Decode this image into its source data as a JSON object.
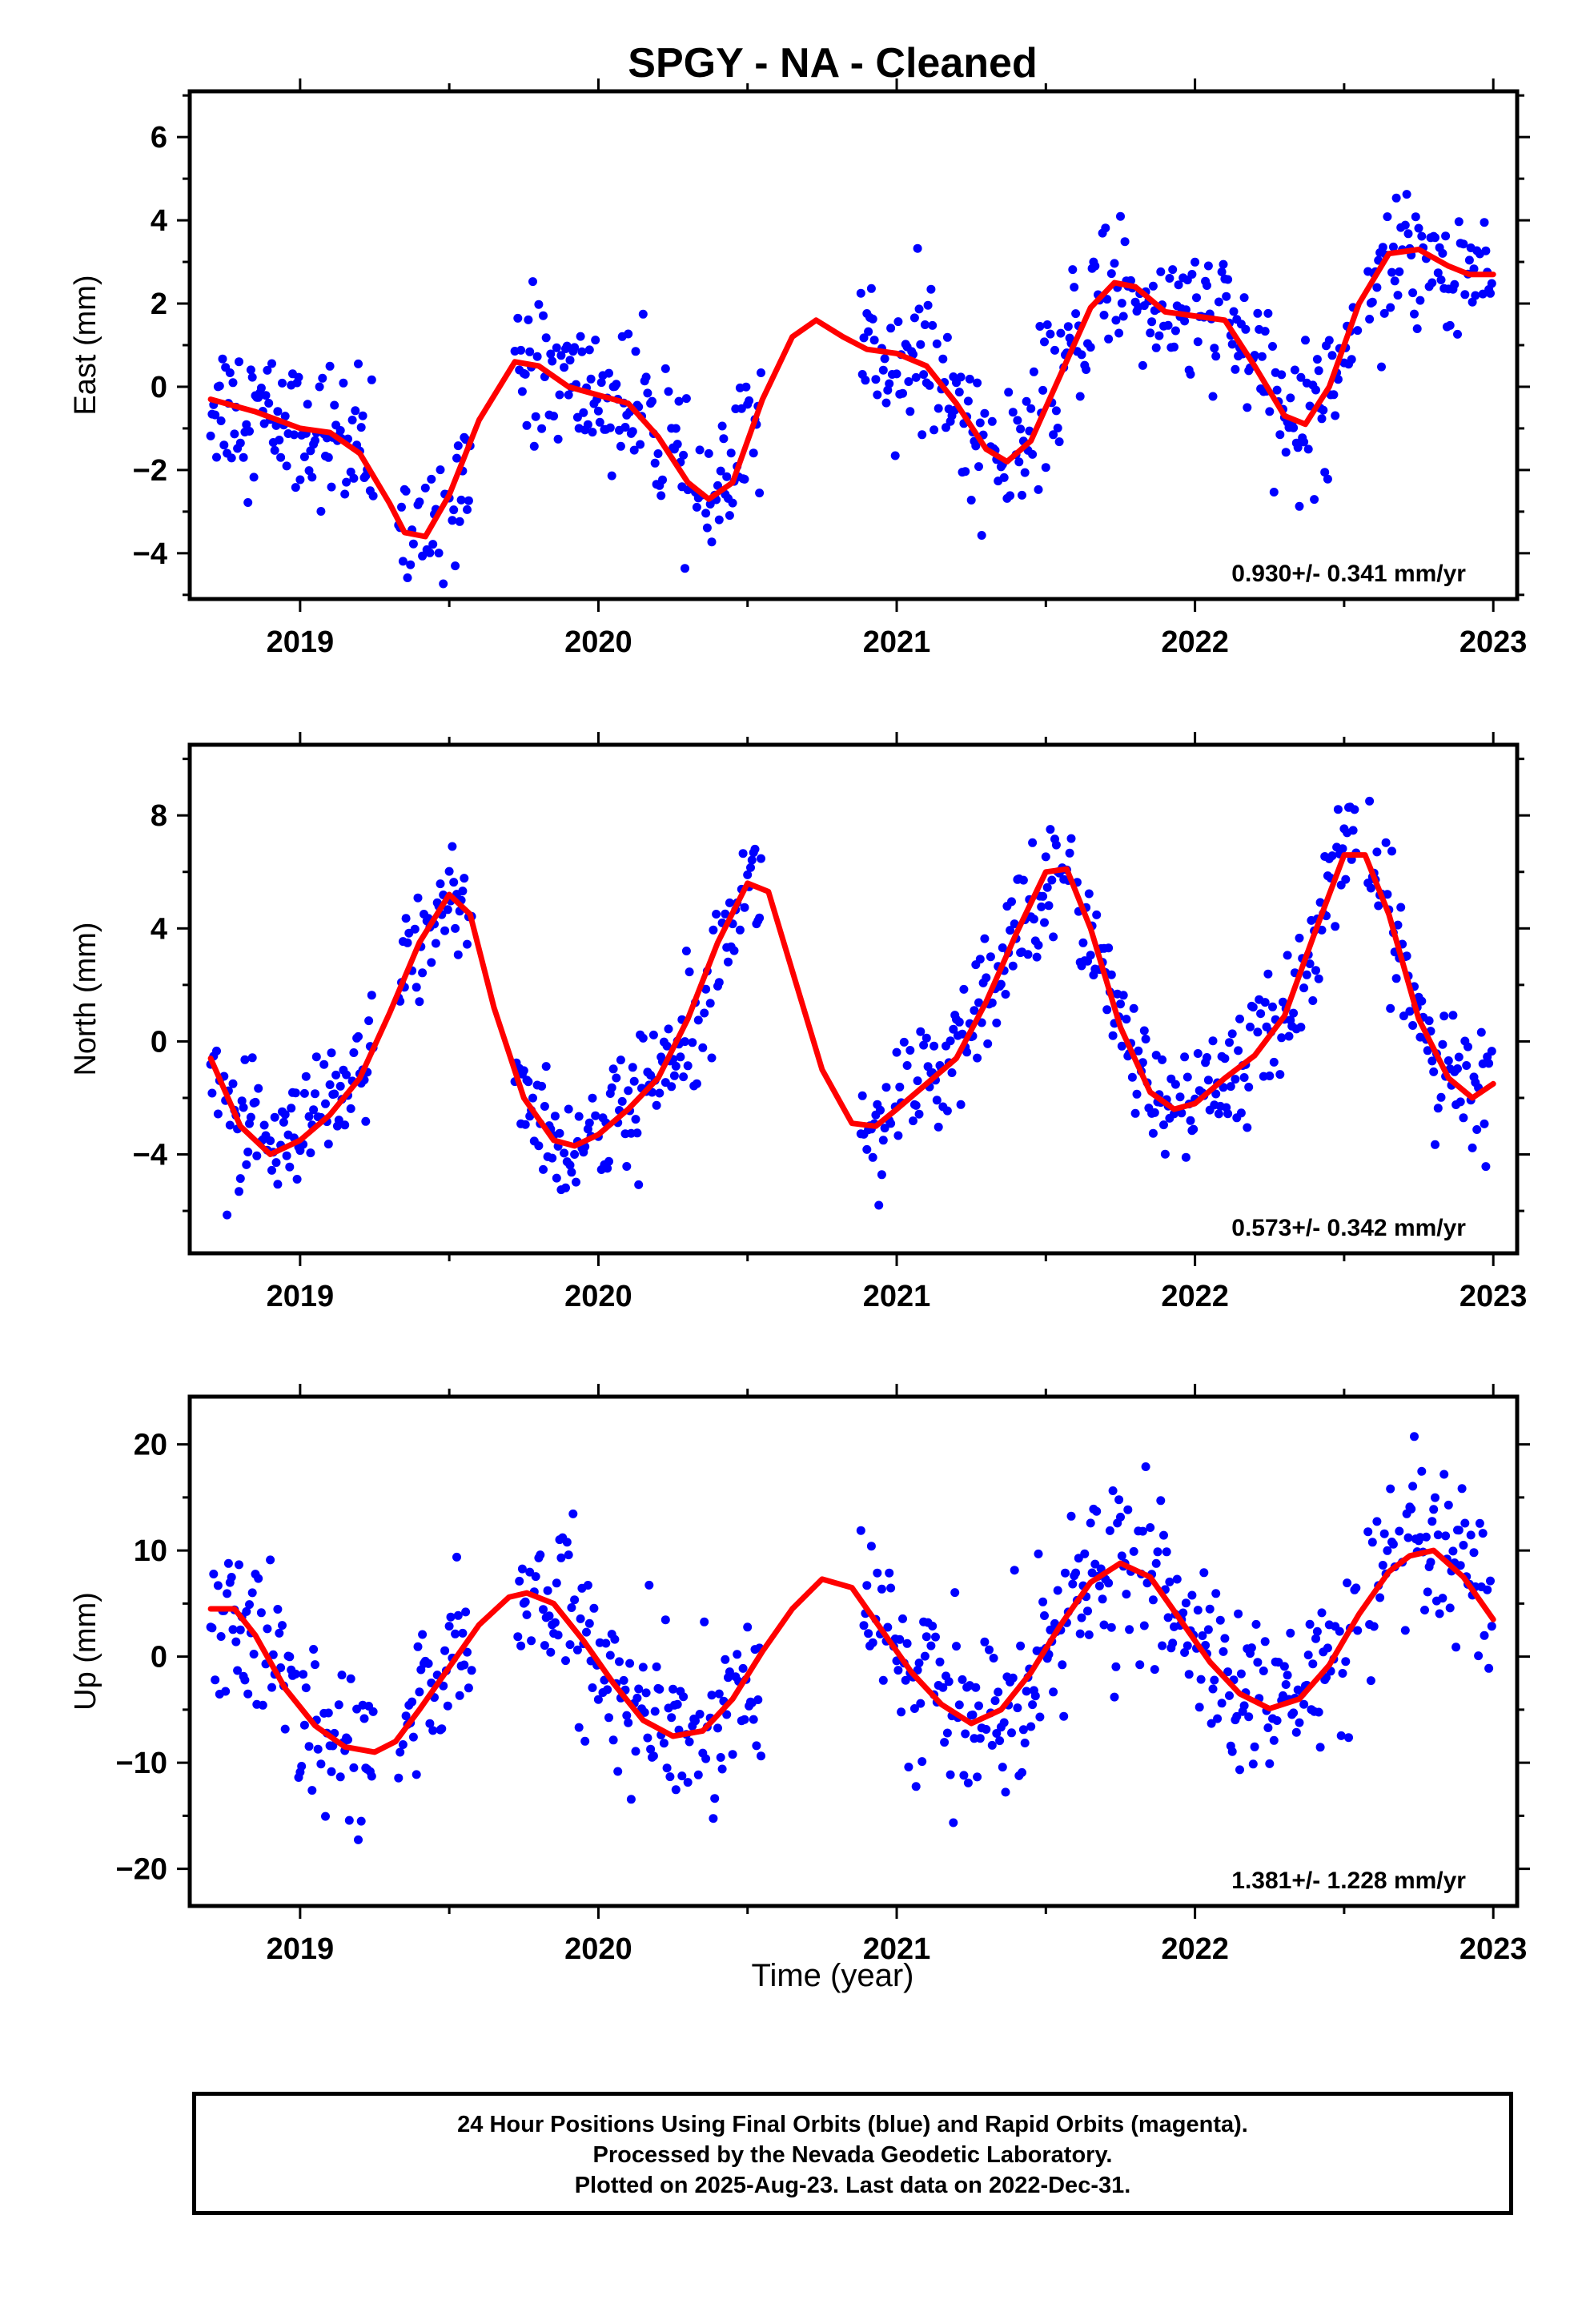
{
  "title": "SPGY  - NA - Cleaned",
  "xlabel": "Time (year)",
  "footer": {
    "line1": "24 Hour Positions Using Final Orbits (blue) and Rapid Orbits (magenta).",
    "line2": "Processed by the Nevada Geodetic Laboratory.",
    "line3": "Plotted on 2025-Aug-23. Last data on 2022-Dec-31."
  },
  "colors": {
    "final_orbits": "#0000ff",
    "rapid_orbits": "#ff00ff",
    "model": "#ff0000"
  },
  "chart_data": [
    {
      "type": "scatter",
      "ylabel": "East (mm)",
      "rate_label": "0.930+/- 0.341 mm/yr",
      "xlim": [
        2018.63,
        2023.08
      ],
      "ylim": [
        -5.1,
        7.1
      ],
      "x_ticks": [
        2019,
        2020,
        2021,
        2022,
        2023
      ],
      "y_ticks": [
        -4,
        -2,
        0,
        2,
        4,
        6
      ],
      "data_spans": [
        [
          2018.7,
          2019.25
        ],
        [
          2019.33,
          2019.58
        ],
        [
          2019.72,
          2020.55
        ],
        [
          2020.88,
          2022.55
        ],
        [
          2022.58,
          2023.0
        ]
      ],
      "model": {
        "x": [
          2018.7,
          2018.85,
          2019.0,
          2019.1,
          2019.2,
          2019.3,
          2019.35,
          2019.42,
          2019.5,
          2019.6,
          2019.72,
          2019.8,
          2019.9,
          2020.0,
          2020.1,
          2020.2,
          2020.3,
          2020.37,
          2020.45,
          2020.55,
          2020.65,
          2020.73,
          2020.82,
          2020.9,
          2021.0,
          2021.1,
          2021.2,
          2021.3,
          2021.37,
          2021.45,
          2021.55,
          2021.65,
          2021.73,
          2021.8,
          2021.9,
          2022.0,
          2022.1,
          2022.2,
          2022.3,
          2022.37,
          2022.45,
          2022.55,
          2022.65,
          2022.75,
          2022.85,
          2022.92,
          2023.0
        ],
        "y": [
          -0.3,
          -0.6,
          -1.0,
          -1.1,
          -1.6,
          -2.8,
          -3.5,
          -3.6,
          -2.6,
          -0.8,
          0.6,
          0.5,
          0.0,
          -0.2,
          -0.4,
          -1.2,
          -2.3,
          -2.7,
          -2.3,
          -0.3,
          1.2,
          1.6,
          1.2,
          0.9,
          0.8,
          0.5,
          -0.4,
          -1.5,
          -1.8,
          -1.3,
          0.3,
          1.9,
          2.5,
          2.4,
          1.8,
          1.7,
          1.6,
          0.5,
          -0.7,
          -0.9,
          0.0,
          2.0,
          3.2,
          3.3,
          2.9,
          2.7,
          2.7
        ]
      }
    },
    {
      "type": "scatter",
      "ylabel": "North (mm)",
      "rate_label": "0.573+/- 0.342 mm/yr",
      "xlim": [
        2018.63,
        2023.08
      ],
      "ylim": [
        -7.5,
        10.5
      ],
      "x_ticks": [
        2019,
        2020,
        2021,
        2022,
        2023
      ],
      "y_ticks": [
        -4,
        0,
        4,
        8
      ],
      "data_spans": [
        [
          2018.7,
          2019.25
        ],
        [
          2019.33,
          2019.58
        ],
        [
          2019.72,
          2020.55
        ],
        [
          2020.88,
          2022.55
        ],
        [
          2022.58,
          2023.0
        ]
      ],
      "model": {
        "x": [
          2018.7,
          2018.8,
          2018.9,
          2019.0,
          2019.1,
          2019.2,
          2019.3,
          2019.4,
          2019.5,
          2019.57,
          2019.65,
          2019.75,
          2019.85,
          2019.92,
          2020.0,
          2020.1,
          2020.2,
          2020.3,
          2020.4,
          2020.5,
          2020.57,
          2020.65,
          2020.75,
          2020.85,
          2020.93,
          2021.0,
          2021.1,
          2021.2,
          2021.3,
          2021.4,
          2021.5,
          2021.57,
          2021.65,
          2021.75,
          2021.85,
          2021.93,
          2022.0,
          2022.1,
          2022.2,
          2022.3,
          2022.4,
          2022.5,
          2022.57,
          2022.65,
          2022.75,
          2022.85,
          2022.93,
          2023.0
        ],
        "y": [
          -0.6,
          -3.0,
          -4.0,
          -3.5,
          -2.6,
          -1.3,
          1.0,
          3.5,
          5.2,
          4.5,
          1.2,
          -2.0,
          -3.5,
          -3.7,
          -3.3,
          -2.4,
          -1.3,
          0.8,
          3.5,
          5.6,
          5.3,
          2.5,
          -1.0,
          -2.9,
          -3.0,
          -2.4,
          -1.5,
          -0.6,
          1.4,
          3.8,
          6.0,
          6.1,
          4.0,
          0.5,
          -1.8,
          -2.4,
          -2.2,
          -1.3,
          -0.5,
          0.9,
          3.8,
          6.6,
          6.6,
          4.5,
          0.8,
          -1.3,
          -2.0,
          -1.5
        ]
      }
    },
    {
      "type": "scatter",
      "ylabel": "Up (mm)",
      "rate_label": "1.381+/- 1.228 mm/yr",
      "xlim": [
        2018.63,
        2023.08
      ],
      "ylim": [
        -23.5,
        24.5
      ],
      "x_ticks": [
        2019,
        2020,
        2021,
        2022,
        2023
      ],
      "y_ticks": [
        -20,
        -10,
        0,
        10,
        20
      ],
      "data_spans": [
        [
          2018.7,
          2019.25
        ],
        [
          2019.33,
          2019.58
        ],
        [
          2019.72,
          2020.55
        ],
        [
          2020.88,
          2022.55
        ],
        [
          2022.58,
          2023.0
        ]
      ],
      "model": {
        "x": [
          2018.7,
          2018.78,
          2018.85,
          2018.95,
          2019.05,
          2019.15,
          2019.25,
          2019.32,
          2019.4,
          2019.5,
          2019.6,
          2019.7,
          2019.76,
          2019.85,
          2019.95,
          2020.05,
          2020.15,
          2020.25,
          2020.35,
          2020.45,
          2020.55,
          2020.65,
          2020.75,
          2020.85,
          2020.95,
          2021.05,
          2021.15,
          2021.25,
          2021.35,
          2021.45,
          2021.55,
          2021.65,
          2021.75,
          2021.85,
          2021.95,
          2022.05,
          2022.15,
          2022.25,
          2022.35,
          2022.45,
          2022.55,
          2022.65,
          2022.72,
          2022.8,
          2022.9,
          2023.0
        ],
        "y": [
          4.5,
          4.5,
          2.0,
          -3.0,
          -6.5,
          -8.5,
          -9.0,
          -8.0,
          -5.0,
          -1.0,
          3.0,
          5.6,
          6.0,
          5.0,
          1.5,
          -2.5,
          -6.0,
          -7.5,
          -7.0,
          -4.0,
          0.5,
          4.5,
          7.3,
          6.5,
          2.5,
          -1.5,
          -4.5,
          -6.3,
          -5.0,
          -1.5,
          3.0,
          7.0,
          8.8,
          7.5,
          3.5,
          -0.5,
          -3.5,
          -4.9,
          -4.0,
          -0.8,
          4.0,
          8.0,
          9.5,
          10.0,
          7.5,
          3.5
        ]
      }
    }
  ]
}
